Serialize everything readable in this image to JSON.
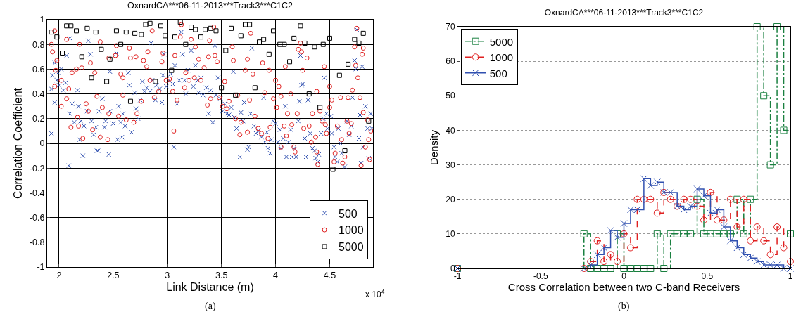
{
  "chart_data": [
    {
      "type": "scatter",
      "title": "OxnardCA***06-11-2013***Track3***C1C2",
      "xlabel": "Link Distance (m)",
      "ylabel": "Correlation Coefficient",
      "xlim": [
        1.89,
        4.9
      ],
      "xticks": [
        2,
        2.5,
        3,
        3.5,
        4,
        4.5
      ],
      "ylim": [
        -1,
        1
      ],
      "yticks": [
        -1,
        -0.8,
        -0.6,
        -0.4,
        -0.2,
        0,
        0.2,
        0.4,
        0.6,
        0.8,
        1
      ],
      "grid": true,
      "legend": "bottom right",
      "annotations": [
        "x 10$^{4}$",
        "(a)"
      ],
      "series": [
        {
          "name": "500",
          "color": "#3050b0",
          "marker": "cross",
          "x": [
            1.93,
            1.93,
            1.94,
            1.96,
            1.96,
            1.98,
            1.99,
            2.0,
            2.02,
            2.04,
            2.06,
            2.07,
            2.09,
            2.1,
            2.1,
            2.12,
            2.14,
            2.17,
            2.18,
            2.19,
            2.2,
            2.22,
            2.23,
            2.26,
            2.27,
            2.29,
            2.3,
            2.32,
            2.34,
            2.35,
            2.36,
            2.37,
            2.4,
            2.42,
            2.43,
            2.46,
            2.47,
            2.47,
            2.5,
            2.53,
            2.54,
            2.55,
            2.57,
            2.58,
            2.59,
            2.61,
            2.64,
            2.65,
            2.67,
            2.7,
            2.71,
            2.73,
            2.75,
            2.77,
            2.79,
            2.81,
            2.84,
            2.85,
            2.86,
            2.89,
            2.9,
            2.93,
            2.95,
            2.96,
            2.97,
            2.99,
            3.02,
            3.03,
            3.05,
            3.06,
            3.07,
            3.09,
            3.11,
            3.13,
            3.14,
            3.16,
            3.17,
            3.19,
            3.22,
            3.24,
            3.26,
            3.28,
            3.29,
            3.31,
            3.33,
            3.36,
            3.38,
            3.4,
            3.42,
            3.44,
            3.45,
            3.47,
            3.49,
            3.51,
            3.53,
            3.55,
            3.57,
            3.59,
            3.61,
            3.62,
            3.64,
            3.67,
            3.68,
            3.7,
            3.71,
            3.74,
            3.75,
            3.77,
            3.78,
            3.8,
            3.82,
            3.84,
            3.87,
            3.89,
            3.9,
            3.92,
            3.93,
            3.95,
            3.96,
            3.98,
            4.0,
            4.02,
            4.04,
            4.05,
            4.07,
            4.09,
            4.1,
            4.12,
            4.14,
            4.15,
            4.17,
            4.19,
            4.21,
            4.22,
            4.23,
            4.24,
            4.25,
            4.27,
            4.28,
            4.3,
            4.32,
            4.34,
            4.36,
            4.37,
            4.39,
            4.4,
            4.42,
            4.44,
            4.45,
            4.47,
            4.48,
            4.51,
            4.52,
            4.54,
            4.55,
            4.57,
            4.58,
            4.6,
            4.61,
            4.64,
            4.66,
            4.68,
            4.7,
            4.71,
            4.73,
            4.74,
            4.75,
            4.77,
            4.78,
            4.79,
            4.8,
            4.81,
            4.83,
            4.85,
            4.86,
            4.88,
            4.89
          ],
          "values": [
            0.08,
            0.44,
            0.55,
            0.33,
            0.65,
            0.51,
            0.57,
            0.47,
            0.6,
            0.43,
            0.49,
            0.71,
            -0.18,
            0.24,
            0.85,
            0.32,
            0.17,
            0.43,
            0.3,
            0.03,
            0.18,
            -0.1,
            0.14,
            0.26,
            0.83,
            0.72,
            0.18,
            0.07,
            0.13,
            -0.06,
            -0.06,
            0.26,
            0.36,
            0.13,
            0.18,
            -0.09,
            0.58,
            0.26,
            0.16,
            0.73,
            0.03,
            0.3,
            0.17,
            0.05,
            0.24,
            0.14,
            0.57,
            0.47,
            0.09,
            0.41,
            0.28,
            0.2,
            0.35,
            0.5,
            0.42,
            0.45,
            0.42,
            0.81,
            0.51,
            0.35,
            0.47,
            0.44,
            0.33,
            0.55,
            0.72,
            0.46,
            0.51,
            0.56,
            0.48,
            -0.03,
            0.63,
            0.32,
            0.51,
            0.9,
            0.72,
            0.51,
            0.4,
            0.59,
            0.75,
            0.46,
            0.63,
            0.51,
            0.41,
            0.53,
            0.39,
            0.45,
            0.24,
            0.43,
            0.17,
            0.79,
            0.39,
            0.53,
            0.36,
            0.26,
            0.32,
            0.24,
            0.23,
            0.29,
            0.58,
            0.21,
            0.12,
            -0.11,
            0.25,
            0.18,
            0.33,
            -0.05,
            -0.03,
            0.24,
            0.77,
            0.14,
            0.08,
            0.1,
            0.05,
            0.37,
            0.01,
            0.09,
            -0.04,
            -0.08,
            0.03,
            0.18,
            0.16,
            0.01,
            0.11,
            -0.04,
            0.04,
            0.3,
            -0.11,
            0.01,
            0.11,
            -0.11,
            -0.04,
            -0.11,
            0.18,
            0.34,
            0.71,
            0.47,
            0.48,
            0.04,
            -0.11,
            0.35,
            0.08,
            -0.04,
            -0.06,
            -0.12,
            -0.15,
            -0.09,
            0.08,
            0.2,
            0.53,
            0.24,
            0.12,
            0.22,
            0.08,
            -0.03,
            -0.11,
            -0.15,
            0.12,
            0.0,
            -0.08,
            -0.19,
            0.18,
            0.07,
            0.14,
            0.37,
            0.67,
            0.6,
            0.92,
            0.04,
            0.23,
            -0.16,
            0.62,
            -0.03,
            0.3,
            0.12,
            -0.12,
            0.24,
            0.12
          ]
        },
        {
          "name": "1000",
          "color": "#e02020",
          "marker": "circle",
          "x": [
            1.93,
            1.94,
            1.96,
            1.98,
            1.97,
            1.96,
            2.02,
            2.02,
            2.07,
            2.07,
            2.09,
            2.11,
            2.12,
            2.16,
            2.17,
            2.19,
            2.18,
            2.21,
            2.22,
            2.25,
            2.27,
            2.29,
            2.31,
            2.33,
            2.35,
            2.38,
            2.38,
            2.4,
            2.45,
            2.46,
            2.46,
            2.52,
            2.53,
            2.55,
            2.57,
            2.59,
            2.59,
            2.62,
            2.65,
            2.66,
            2.69,
            2.71,
            2.72,
            2.76,
            2.78,
            2.82,
            2.81,
            2.84,
            2.86,
            2.88,
            2.92,
            2.95,
            2.96,
            2.99,
            3.02,
            3.05,
            3.06,
            3.07,
            3.09,
            3.12,
            3.13,
            3.16,
            3.17,
            3.2,
            3.22,
            3.25,
            3.26,
            3.29,
            3.31,
            3.34,
            3.37,
            3.38,
            3.39,
            3.4,
            3.43,
            3.44,
            3.46,
            3.48,
            3.51,
            3.53,
            3.55,
            3.57,
            3.6,
            3.61,
            3.63,
            3.65,
            3.67,
            3.68,
            3.72,
            3.74,
            3.74,
            3.76,
            3.77,
            3.79,
            3.81,
            3.84,
            3.87,
            3.88,
            3.9,
            3.93,
            3.94,
            3.95,
            3.98,
            4.0,
            4.01,
            4.03,
            4.05,
            4.05,
            4.08,
            4.1,
            4.09,
            4.11,
            4.14,
            4.15,
            4.17,
            4.18,
            4.2,
            4.21,
            4.23,
            4.24,
            4.25,
            4.26,
            4.29,
            4.31,
            4.33,
            4.34,
            4.37,
            4.38,
            4.38,
            4.39,
            4.41,
            4.43,
            4.45,
            4.46,
            4.47,
            4.5,
            4.5,
            4.52,
            4.54,
            4.55,
            4.57,
            4.6,
            4.61,
            4.62,
            4.64,
            4.66,
            4.67,
            4.68,
            4.7,
            4.71,
            4.73,
            4.74,
            4.75,
            4.76,
            4.78,
            4.79,
            4.8,
            4.81,
            4.81,
            4.83,
            4.85,
            4.86,
            4.87,
            4.88
          ],
          "values": [
            0.8,
            0.74,
            0.91,
            0.67,
            0.59,
            0.46,
            0.51,
            0.3,
            0.84,
            0.36,
            0.44,
            0.13,
            0.57,
            0.6,
            0.21,
            0.8,
            0.14,
            0.61,
            0.04,
            0.32,
            0.26,
            0.65,
            0.11,
            0.57,
            0.38,
            0.82,
            0.05,
            0.29,
            0.03,
            0.24,
            0.69,
            0.71,
            0.79,
            0.22,
            0.56,
            0.53,
            0.39,
            0.19,
            0.77,
            0.69,
            0.17,
            0.7,
            0.24,
            0.34,
            0.67,
            0.74,
            0.62,
            0.51,
            0.91,
            0.37,
            0.42,
            0.66,
            0.73,
            0.51,
            0.52,
            0.42,
            0.1,
            0.71,
            0.35,
            0.86,
            0.96,
            0.45,
            0.57,
            0.51,
            0.84,
            0.53,
            0.78,
            0.68,
            0.51,
            0.61,
            0.31,
            0.7,
            0.83,
            0.36,
            0.94,
            0.71,
            0.66,
            0.37,
            0.3,
            0.5,
            0.28,
            0.34,
            0.78,
            0.67,
            0.2,
            0.39,
            0.07,
            0.17,
            0.59,
            0.68,
            0.09,
            0.35,
            0.89,
            0.56,
            0.22,
            0.12,
            0.08,
            0.65,
            0.41,
            0.04,
            0.59,
            0.13,
            0.36,
            0.51,
            0.29,
            0.46,
            -0.03,
            0.38,
            0.14,
            0.06,
            0.62,
            0.24,
            0.4,
            0.15,
            -0.03,
            -0.07,
            0.24,
            0.76,
            0.81,
            0.74,
            0.59,
            0.12,
            0.69,
            0.14,
            0.01,
            0.24,
            0.05,
            -0.07,
            0.42,
            -0.17,
            0.26,
            0.18,
            0.62,
            0.15,
            0.08,
            0.46,
            0.29,
            0.35,
            -0.15,
            -0.08,
            0.14,
            0.37,
            0.03,
            -0.16,
            -0.11,
            0.18,
            0.37,
            0.08,
            0.16,
            0.43,
            0.78,
            0.63,
            0.93,
            0.53,
            0.37,
            -0.18,
            0.72,
            0.77,
            0.25,
            -0.03,
            0.19,
            0.03,
            -0.13,
            0.1
          ]
        },
        {
          "name": "5000",
          "color": "#000000",
          "marker": "square",
          "x": [
            1.93,
            1.98,
            2.07,
            2.11,
            2.16,
            2.03,
            2.21,
            2.26,
            2.34,
            2.3,
            2.39,
            2.44,
            2.47,
            2.53,
            2.57,
            2.62,
            2.66,
            2.7,
            2.76,
            2.8,
            2.84,
            2.89,
            2.94,
            2.98,
            3.04,
            3.07,
            3.12,
            3.17,
            3.22,
            3.26,
            3.31,
            3.35,
            3.4,
            3.45,
            3.5,
            3.54,
            3.59,
            3.63,
            3.68,
            3.72,
            3.76,
            3.81,
            3.85,
            3.89,
            3.94,
            3.98,
            4.04,
            4.08,
            4.13,
            4.17,
            4.23,
            4.27,
            4.31,
            4.36,
            4.41,
            4.44,
            4.5,
            4.53,
            4.59,
            4.64,
            4.67,
            4.73,
            4.77,
            4.81,
            4.86
          ],
          "values": [
            0.9,
            0.86,
            0.95,
            0.95,
            0.91,
            0.73,
            0.7,
            0.93,
            0.9,
            0.53,
            0.76,
            0.5,
            0.68,
            0.91,
            0.8,
            0.9,
            0.34,
            0.89,
            0.88,
            0.96,
            0.97,
            0.5,
            0.95,
            0.87,
            0.59,
            0.86,
            0.98,
            0.8,
            0.94,
            0.92,
            0.86,
            0.92,
            0.93,
            0.91,
            0.45,
            0.75,
            0.93,
            0.39,
            0.87,
            0.96,
            0.96,
            0.45,
            0.82,
            0.84,
            0.72,
            0.91,
            0.8,
            0.8,
            0.66,
            0.85,
            0.95,
            0.81,
            0.4,
            0.78,
            0.29,
            0.8,
            0.85,
            -0.21,
            0.55,
            -0.06,
            0.64,
            0.84,
            0.81,
            0.89,
            0.18
          ]
        }
      ]
    },
    {
      "type": "step",
      "title": "OxnardCA***06-11-2013***Track3***C1C2",
      "xlabel": "Cross Correlation between two C-band Receivers",
      "ylabel": "Density",
      "xlim": [
        -1,
        1
      ],
      "xticks": [
        -1,
        -0.5,
        0,
        0.5,
        1
      ],
      "ylim": [
        0,
        70
      ],
      "yticks": [
        0,
        10,
        20,
        30,
        40,
        50,
        60,
        70
      ],
      "grid": true,
      "legend": "top left",
      "annotations": [
        "(b)"
      ],
      "x": [
        -1,
        -0.24,
        -0.2,
        -0.16,
        -0.12,
        -0.08,
        -0.04,
        0,
        0.04,
        0.08,
        0.12,
        0.16,
        0.2,
        0.24,
        0.28,
        0.32,
        0.36,
        0.4,
        0.44,
        0.48,
        0.52,
        0.56,
        0.6,
        0.64,
        0.68,
        0.72,
        0.76,
        0.8,
        0.84,
        0.88,
        0.92,
        0.96,
        1
      ],
      "series": [
        {
          "name": "5000",
          "color": "#1a8040",
          "marker": "square",
          "line_style": "dashdot",
          "values": [
            0,
            10,
            0,
            0,
            0,
            0,
            10,
            0,
            0,
            0,
            0,
            0,
            10,
            0,
            10,
            10,
            10,
            10,
            20,
            10,
            10,
            10,
            10,
            10,
            20,
            10,
            20,
            70,
            50,
            30,
            70,
            40,
            10
          ]
        },
        {
          "name": "1000",
          "color": "#e02020",
          "marker": "circle",
          "line_style": "dashed",
          "values": [
            0,
            0,
            2,
            8,
            2,
            4,
            2,
            10,
            6,
            20,
            20,
            20,
            16,
            22,
            20,
            18,
            20,
            20,
            18,
            14,
            22,
            14,
            14,
            20,
            12,
            20,
            8,
            12,
            8,
            4,
            12,
            6,
            2
          ]
        },
        {
          "name": "500",
          "color": "#3050b0",
          "marker": "cross",
          "line_style": "solid",
          "values": [
            0,
            0,
            1,
            4,
            6,
            11,
            9,
            13,
            17,
            17,
            26,
            24,
            25,
            22,
            22,
            18,
            17,
            18,
            23,
            21,
            16,
            17,
            12,
            8,
            6,
            4,
            3,
            2,
            1,
            1,
            1,
            0,
            0
          ]
        }
      ]
    }
  ]
}
